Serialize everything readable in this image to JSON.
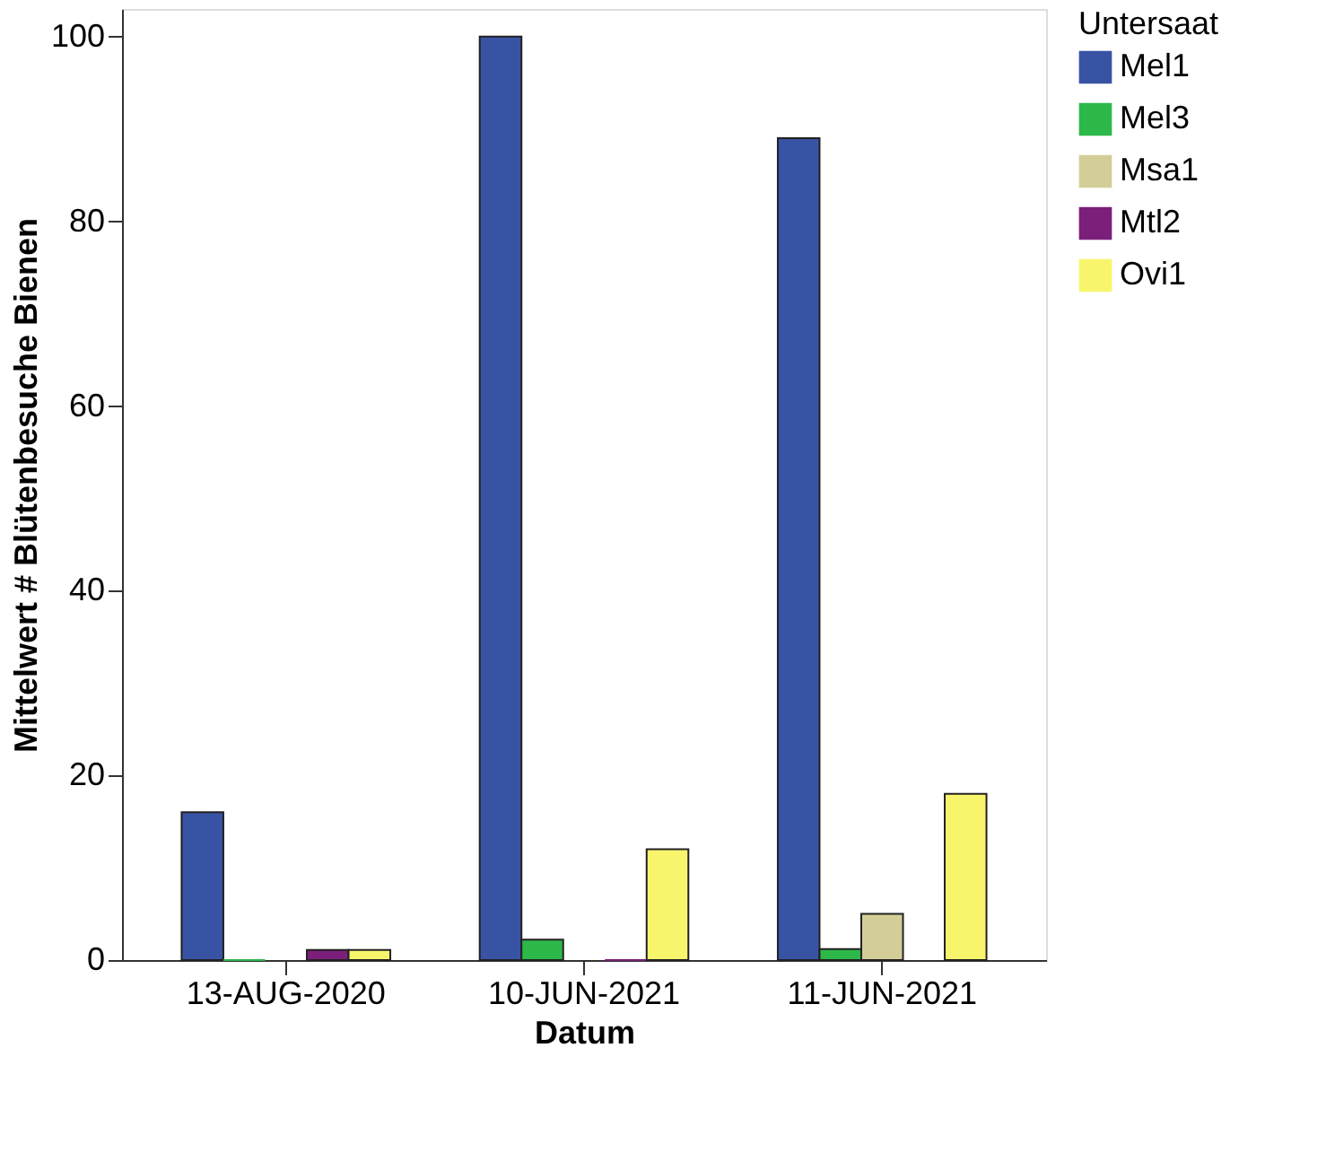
{
  "chart_data": {
    "type": "bar",
    "xlabel": "Datum",
    "ylabel": "Mittelwert # Blütenbesuche Bienen",
    "legend_title": "Untersaat",
    "categories": [
      "13-AUG-2020",
      "10-JUN-2021",
      "11-JUN-2021"
    ],
    "series": [
      {
        "name": "Mel1",
        "color": "#3953a4",
        "values": [
          16,
          100,
          89
        ]
      },
      {
        "name": "Mel3",
        "color": "#2db84a",
        "values": [
          0,
          2.2,
          1.2
        ]
      },
      {
        "name": "Msa1",
        "color": "#d3ce97",
        "values": [
          null,
          null,
          5
        ]
      },
      {
        "name": "Mtl2",
        "color": "#7b1f7b",
        "values": [
          1.1,
          0,
          null
        ]
      },
      {
        "name": "Ovi1",
        "color": "#f8f56d",
        "values": [
          1.1,
          12,
          18
        ]
      }
    ],
    "ylim": [
      0,
      103
    ],
    "yticks": [
      0,
      20,
      40,
      60,
      80,
      100
    ],
    "grid": false,
    "legend": "top right"
  }
}
